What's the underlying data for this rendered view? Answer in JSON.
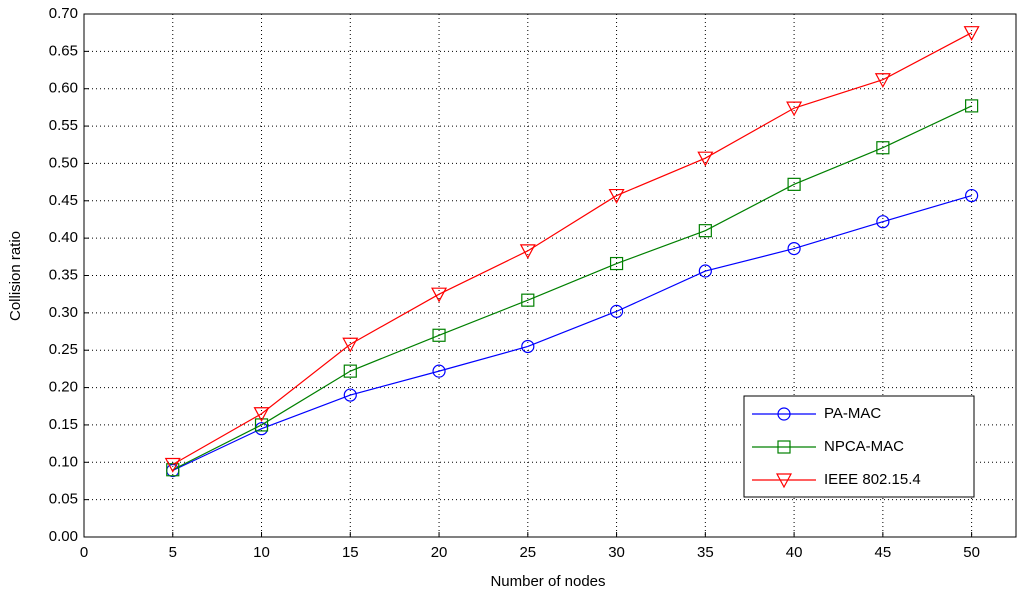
{
  "chart_data": {
    "type": "line",
    "xlabel": "Number of nodes",
    "ylabel": "Collision ratio",
    "x": [
      5,
      10,
      15,
      20,
      25,
      30,
      35,
      40,
      45,
      50
    ],
    "series": [
      {
        "name": "PA-MAC",
        "color": "#0000ff",
        "marker": "circle",
        "values": [
          0.089,
          0.145,
          0.19,
          0.222,
          0.255,
          0.302,
          0.356,
          0.386,
          0.422,
          0.457
        ]
      },
      {
        "name": "NPCA-MAC",
        "color": "#008000",
        "marker": "square",
        "values": [
          0.09,
          0.15,
          0.222,
          0.27,
          0.317,
          0.366,
          0.41,
          0.472,
          0.521,
          0.577
        ]
      },
      {
        "name": "IEEE 802.15.4",
        "color": "#ff0000",
        "marker": "triangle-down",
        "values": [
          0.097,
          0.165,
          0.258,
          0.325,
          0.383,
          0.457,
          0.507,
          0.574,
          0.612,
          0.675
        ]
      }
    ],
    "xlim": [
      0,
      52.5
    ],
    "xticks": [
      0,
      5,
      10,
      15,
      20,
      25,
      30,
      35,
      40,
      45,
      50
    ],
    "ylim": [
      0,
      0.7
    ],
    "yticks": [
      {
        "value": 0,
        "label": "0.00"
      },
      {
        "value": 0.05,
        "label": "0.05"
      },
      {
        "value": 0.1,
        "label": "0.10"
      },
      {
        "value": 0.15,
        "label": "0.15"
      },
      {
        "value": 0.2,
        "label": "0.20"
      },
      {
        "value": 0.25,
        "label": "0.25"
      },
      {
        "value": 0.3,
        "label": "0.30"
      },
      {
        "value": 0.35,
        "label": "0.35"
      },
      {
        "value": 0.4,
        "label": "0.40"
      },
      {
        "value": 0.45,
        "label": "0.45"
      },
      {
        "value": 0.5,
        "label": "0.50"
      },
      {
        "value": 0.55,
        "label": "0.55"
      },
      {
        "value": 0.6,
        "label": "0.60"
      },
      {
        "value": 0.65,
        "label": "0.65"
      },
      {
        "value": 0.7,
        "label": "0.70"
      }
    ],
    "grid": true,
    "legend": "lower right"
  }
}
